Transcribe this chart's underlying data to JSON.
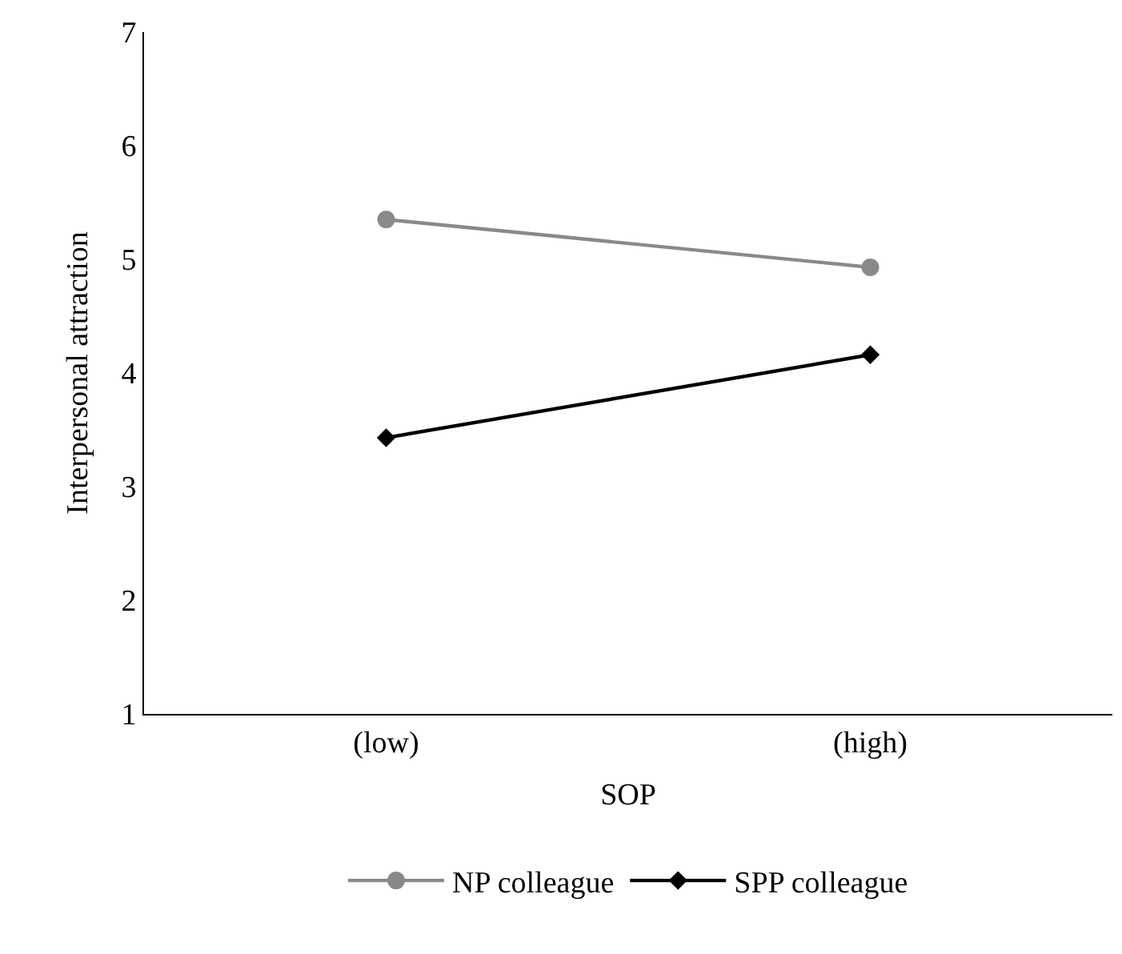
{
  "chart_data": {
    "type": "line",
    "xlabel": "SOP",
    "ylabel": "Interpersonal attraction",
    "categories": [
      "(low)",
      "(high)"
    ],
    "series": [
      {
        "name": "NP colleague",
        "color": "#898989",
        "values": [
          5.35,
          4.93
        ],
        "marker": "circle"
      },
      {
        "name": "SPP colleague",
        "color": "#000000",
        "values": [
          3.43,
          4.16
        ],
        "marker": "diamond"
      }
    ],
    "ylim": [
      1,
      7
    ],
    "yticks": [
      1,
      2,
      3,
      4,
      5,
      6,
      7
    ],
    "legend": "bottom",
    "line_style": "solid"
  }
}
